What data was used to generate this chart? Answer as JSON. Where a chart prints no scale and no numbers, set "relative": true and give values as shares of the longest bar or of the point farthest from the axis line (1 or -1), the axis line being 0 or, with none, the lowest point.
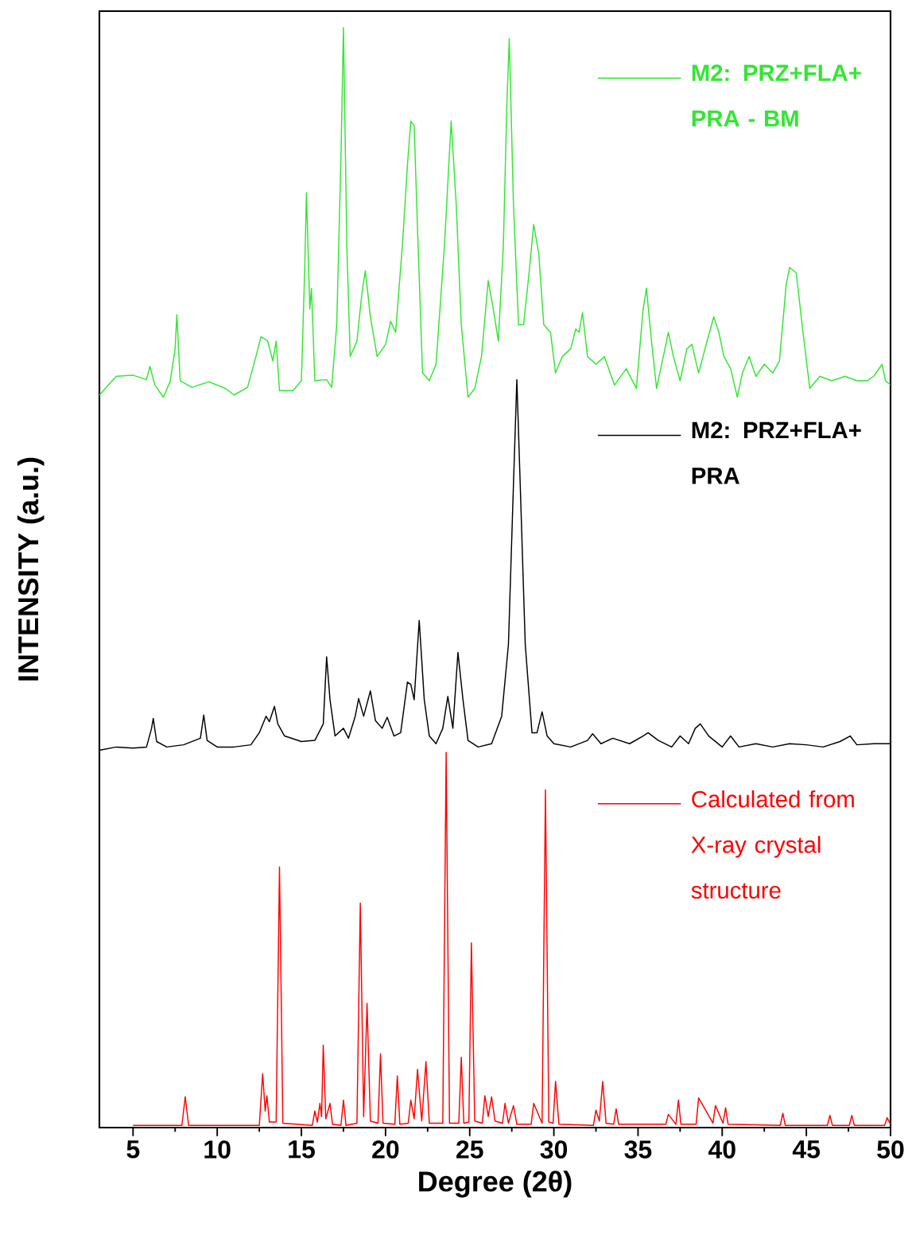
{
  "chart_data": {
    "type": "line",
    "relative": true,
    "xlabel": "Degree (2θ)",
    "ylabel": "INTENSITY (a.u.)",
    "xlim": [
      3,
      50
    ],
    "xticks": [
      5,
      10,
      15,
      20,
      25,
      30,
      35,
      40,
      45,
      50
    ],
    "grid": false,
    "marker": "none",
    "line_style": "solid",
    "series": [
      {
        "name": "M2: PRZ+FLA+ PRA - BM",
        "color": "#33e633",
        "x": [
          3.0,
          4,
          5,
          5.8,
          6.0,
          6.3,
          6.8,
          7.2,
          7.5,
          7.6,
          7.8,
          8.5,
          9.5,
          10.5,
          11,
          11.8,
          12.3,
          12.6,
          13.0,
          13.3,
          13.5,
          13.7,
          14.5,
          15.0,
          15.2,
          15.3,
          15.5,
          15.6,
          15.8,
          16.5,
          16.8,
          17.1,
          17.35,
          17.5,
          17.7,
          17.9,
          18.3,
          18.6,
          18.8,
          19.1,
          19.5,
          20.0,
          20.3,
          20.6,
          21.0,
          21.3,
          21.5,
          21.7,
          21.9,
          22.2,
          22.6,
          23.0,
          23.5,
          23.9,
          24.2,
          24.5,
          24.9,
          25.3,
          25.7,
          26.1,
          26.4,
          26.7,
          27.0,
          27.2,
          27.35,
          27.6,
          27.9,
          28.2,
          28.5,
          28.8,
          29.1,
          29.4,
          29.8,
          30.1,
          30.5,
          31.0,
          31.3,
          31.5,
          31.7,
          32.0,
          32.5,
          33.0,
          33.6,
          34.3,
          34.9,
          35.3,
          35.5,
          35.8,
          36.1,
          36.5,
          36.8,
          37.1,
          37.5,
          37.9,
          38.2,
          38.6,
          39.1,
          39.5,
          39.8,
          40.1,
          40.5,
          40.9,
          41.2,
          41.6,
          42.0,
          42.5,
          43.0,
          43.4,
          43.8,
          44.0,
          44.4,
          44.8,
          45.2,
          45.8,
          46.5,
          47.3,
          48,
          48.6,
          49.0,
          49.5,
          49.7,
          50
        ],
        "values": [
          0.666,
          0.683,
          0.684,
          0.68,
          0.692,
          0.675,
          0.664,
          0.678,
          0.708,
          0.739,
          0.679,
          0.673,
          0.678,
          0.672,
          0.666,
          0.673,
          0.701,
          0.719,
          0.715,
          0.697,
          0.715,
          0.67,
          0.67,
          0.679,
          0.781,
          0.85,
          0.744,
          0.763,
          0.679,
          0.68,
          0.673,
          0.73,
          0.882,
          1.0,
          0.802,
          0.701,
          0.715,
          0.759,
          0.779,
          0.737,
          0.701,
          0.712,
          0.733,
          0.723,
          0.802,
          0.875,
          0.915,
          0.911,
          0.817,
          0.686,
          0.679,
          0.694,
          0.802,
          0.915,
          0.839,
          0.73,
          0.664,
          0.672,
          0.701,
          0.77,
          0.744,
          0.715,
          0.802,
          0.926,
          0.99,
          0.839,
          0.73,
          0.73,
          0.773,
          0.821,
          0.795,
          0.73,
          0.723,
          0.686,
          0.701,
          0.708,
          0.726,
          0.723,
          0.741,
          0.701,
          0.694,
          0.701,
          0.675,
          0.69,
          0.672,
          0.744,
          0.763,
          0.715,
          0.672,
          0.701,
          0.723,
          0.701,
          0.679,
          0.708,
          0.712,
          0.686,
          0.715,
          0.737,
          0.723,
          0.701,
          0.69,
          0.664,
          0.686,
          0.701,
          0.683,
          0.694,
          0.686,
          0.697,
          0.766,
          0.782,
          0.777,
          0.723,
          0.672,
          0.683,
          0.679,
          0.683,
          0.679,
          0.679,
          0.683,
          0.694,
          0.679,
          0.675
        ]
      },
      {
        "name": "M2: PRZ+FLA+ PRA",
        "color": "#000000",
        "x": [
          3.0,
          4,
          5,
          5.8,
          6.1,
          6.2,
          6.4,
          7,
          8,
          9.0,
          9.2,
          9.4,
          10,
          11,
          12,
          12.5,
          12.9,
          13.1,
          13.4,
          13.6,
          14,
          15,
          15.8,
          16.3,
          16.5,
          16.7,
          17.0,
          17.5,
          17.8,
          18.2,
          18.4,
          18.7,
          19.1,
          19.4,
          19.8,
          20.1,
          20.5,
          20.9,
          21.3,
          21.5,
          21.7,
          22.0,
          22.3,
          22.6,
          23.0,
          23.4,
          23.7,
          24.0,
          24.3,
          24.6,
          24.9,
          25.5,
          26.3,
          26.9,
          27.3,
          27.6,
          27.8,
          28.0,
          28.3,
          28.7,
          29.0,
          29.3,
          29.6,
          30,
          31,
          32,
          32.3,
          32.8,
          33.5,
          34.5,
          35.3,
          35.6,
          36.2,
          37,
          37.5,
          38,
          38.4,
          38.7,
          39.2,
          40,
          40.5,
          41,
          42,
          43,
          44,
          45,
          46,
          47,
          47.6,
          48,
          49,
          50
        ],
        "values": [
          0.343,
          0.346,
          0.345,
          0.346,
          0.363,
          0.372,
          0.351,
          0.346,
          0.348,
          0.354,
          0.375,
          0.352,
          0.346,
          0.346,
          0.348,
          0.359,
          0.374,
          0.369,
          0.383,
          0.367,
          0.356,
          0.351,
          0.352,
          0.367,
          0.428,
          0.389,
          0.356,
          0.363,
          0.354,
          0.374,
          0.39,
          0.374,
          0.397,
          0.37,
          0.363,
          0.373,
          0.356,
          0.359,
          0.405,
          0.403,
          0.389,
          0.461,
          0.389,
          0.356,
          0.349,
          0.363,
          0.392,
          0.363,
          0.432,
          0.389,
          0.352,
          0.346,
          0.349,
          0.374,
          0.439,
          0.585,
          0.68,
          0.585,
          0.439,
          0.359,
          0.359,
          0.378,
          0.356,
          0.349,
          0.346,
          0.352,
          0.358,
          0.349,
          0.354,
          0.349,
          0.356,
          0.359,
          0.352,
          0.346,
          0.356,
          0.349,
          0.363,
          0.367,
          0.356,
          0.346,
          0.356,
          0.346,
          0.349,
          0.346,
          0.349,
          0.348,
          0.346,
          0.351,
          0.356,
          0.348,
          0.349,
          0.349
        ]
      },
      {
        "name": "Calculated from X-ray crystal structure",
        "color": "#ff0000",
        "x": [
          5,
          7.9,
          8.1,
          8.3,
          12.5,
          12.7,
          12.85,
          12.95,
          13.1,
          13.5,
          13.7,
          13.9,
          15.65,
          15.8,
          15.95,
          16.1,
          16.2,
          16.3,
          16.45,
          16.7,
          16.85,
          17.35,
          17.5,
          17.65,
          18.3,
          18.5,
          18.7,
          18.9,
          19.1,
          19.55,
          19.7,
          19.85,
          20.55,
          20.7,
          20.85,
          21.35,
          21.5,
          21.7,
          21.9,
          22.15,
          22.4,
          22.6,
          23.4,
          23.6,
          23.8,
          24.35,
          24.5,
          24.65,
          24.95,
          25.1,
          25.3,
          25.75,
          25.9,
          26.1,
          26.3,
          26.5,
          26.95,
          27.1,
          27.3,
          27.6,
          27.8,
          28.65,
          28.8,
          29.3,
          29.5,
          29.7,
          29.95,
          30.1,
          30.3,
          32.35,
          32.5,
          32.7,
          32.9,
          33.1,
          33.55,
          33.7,
          33.85,
          36.65,
          36.8,
          37.25,
          37.4,
          37.55,
          38.45,
          38.6,
          39.45,
          39.6,
          40.05,
          40.2,
          40.35,
          43.45,
          43.6,
          43.75,
          46.25,
          46.4,
          46.55,
          47.55,
          47.7,
          47.85,
          49.65,
          49.8,
          50
        ],
        "values": [
          0.002,
          0.002,
          0.028,
          0.002,
          0.002,
          0.049,
          0.015,
          0.029,
          0.005,
          0.005,
          0.237,
          0.004,
          0.002,
          0.015,
          0.005,
          0.022,
          0.01,
          0.075,
          0.008,
          0.022,
          0.003,
          0.002,
          0.025,
          0.002,
          0.004,
          0.204,
          0.01,
          0.113,
          0.006,
          0.004,
          0.067,
          0.004,
          0.003,
          0.047,
          0.003,
          0.004,
          0.025,
          0.008,
          0.053,
          0.006,
          0.06,
          0.004,
          0.004,
          0.341,
          0.004,
          0.004,
          0.064,
          0.004,
          0.005,
          0.168,
          0.006,
          0.004,
          0.029,
          0.01,
          0.028,
          0.006,
          0.004,
          0.022,
          0.004,
          0.02,
          0.003,
          0.003,
          0.022,
          0.004,
          0.307,
          0.005,
          0.004,
          0.042,
          0.003,
          0.002,
          0.016,
          0.006,
          0.042,
          0.004,
          0.003,
          0.017,
          0.003,
          0.003,
          0.012,
          0.003,
          0.025,
          0.003,
          0.003,
          0.027,
          0.004,
          0.02,
          0.004,
          0.018,
          0.003,
          0.002,
          0.013,
          0.002,
          0.002,
          0.011,
          0.002,
          0.002,
          0.011,
          0.002,
          0.002,
          0.009,
          0.003
        ]
      }
    ]
  }
}
